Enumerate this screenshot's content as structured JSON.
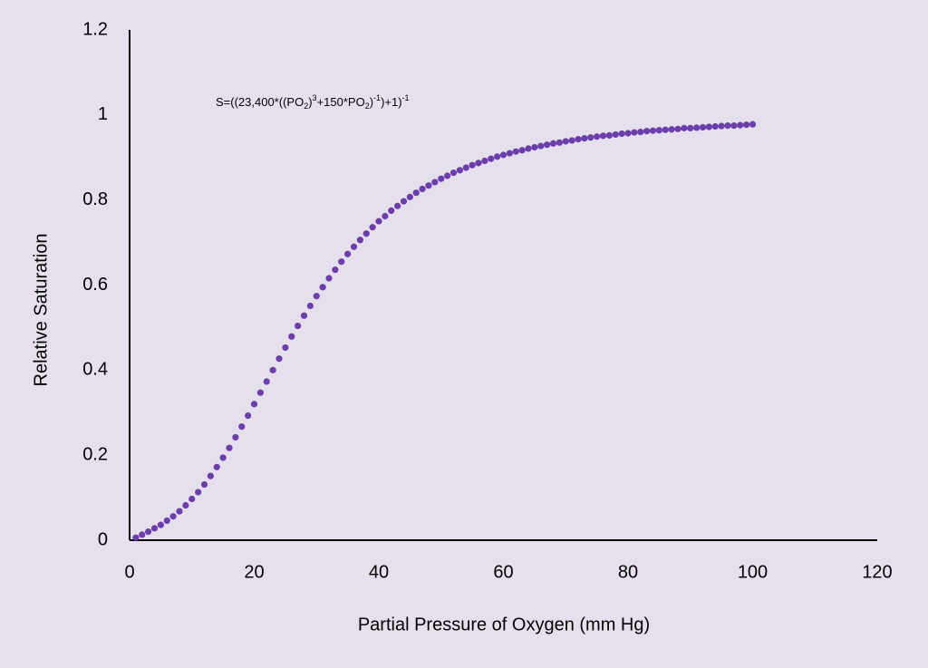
{
  "chart_data": {
    "type": "scatter",
    "x_label": "Partial Pressure of Oxygen (mm Hg)",
    "y_label": "Relative Saturation",
    "annotation": [
      {
        "text": "S=((23,400*((PO",
        "position": "baseline"
      },
      {
        "text": "2",
        "position": "sub"
      },
      {
        "text": ")",
        "position": "baseline"
      },
      {
        "text": "3",
        "position": "super"
      },
      {
        "text": "+150*PO",
        "position": "baseline"
      },
      {
        "text": "2",
        "position": "sub"
      },
      {
        "text": ")",
        "position": "baseline"
      },
      {
        "text": "-1",
        "position": "super"
      },
      {
        "text": ")+1)",
        "position": "baseline"
      },
      {
        "text": "-1",
        "position": "super"
      }
    ],
    "xlim": [
      0,
      120
    ],
    "ylim": [
      0,
      1.2
    ],
    "xticks": [
      0,
      20,
      40,
      60,
      80,
      100,
      120
    ],
    "yticks": [
      0,
      0.2,
      0.4,
      0.6,
      0.8,
      1,
      1.2
    ],
    "grid": false,
    "series": [
      {
        "color": "#6a3fab",
        "x": [
          1,
          2,
          3,
          4,
          5,
          6,
          7,
          8,
          9,
          10,
          11,
          12,
          13,
          14,
          15,
          16,
          17,
          18,
          19,
          20,
          21,
          22,
          23,
          24,
          25,
          26,
          27,
          28,
          29,
          30,
          31,
          32,
          33,
          34,
          35,
          36,
          37,
          38,
          39,
          40,
          41,
          42,
          43,
          44,
          45,
          46,
          47,
          48,
          49,
          50,
          51,
          52,
          53,
          54,
          55,
          56,
          57,
          58,
          59,
          60,
          61,
          62,
          63,
          64,
          65,
          66,
          67,
          68,
          69,
          70,
          71,
          72,
          73,
          74,
          75,
          76,
          77,
          78,
          79,
          80,
          81,
          82,
          83,
          84,
          85,
          86,
          87,
          88,
          89,
          90,
          91,
          92,
          93,
          94,
          95,
          96,
          97,
          98,
          99,
          100
        ],
        "values": [
          0.006,
          0.013,
          0.02,
          0.028,
          0.036,
          0.046,
          0.056,
          0.068,
          0.082,
          0.097,
          0.113,
          0.131,
          0.151,
          0.172,
          0.194,
          0.217,
          0.242,
          0.267,
          0.293,
          0.32,
          0.347,
          0.373,
          0.4,
          0.427,
          0.453,
          0.479,
          0.504,
          0.528,
          0.551,
          0.574,
          0.595,
          0.616,
          0.636,
          0.655,
          0.673,
          0.69,
          0.706,
          0.721,
          0.736,
          0.75,
          0.762,
          0.775,
          0.786,
          0.797,
          0.807,
          0.817,
          0.826,
          0.834,
          0.842,
          0.85,
          0.857,
          0.864,
          0.87,
          0.876,
          0.882,
          0.887,
          0.892,
          0.897,
          0.902,
          0.906,
          0.91,
          0.914,
          0.917,
          0.921,
          0.924,
          0.927,
          0.93,
          0.933,
          0.935,
          0.938,
          0.94,
          0.943,
          0.945,
          0.947,
          0.949,
          0.951,
          0.952,
          0.954,
          0.956,
          0.957,
          0.959,
          0.96,
          0.962,
          0.963,
          0.964,
          0.965,
          0.966,
          0.967,
          0.969,
          0.969,
          0.97,
          0.971,
          0.972,
          0.973,
          0.974,
          0.975,
          0.975,
          0.976,
          0.977,
          0.978
        ]
      }
    ]
  }
}
